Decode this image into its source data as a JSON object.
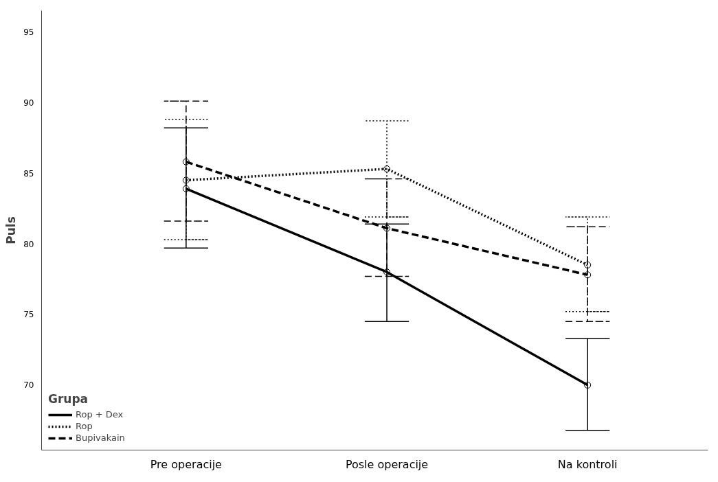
{
  "chart_data": {
    "type": "line",
    "ylabel": "Puls",
    "legend_title": "Grupa",
    "categories": [
      "Pre operacije",
      "Posle operacije",
      "Na kontroli"
    ],
    "ylim": [
      65.4,
      96.5
    ],
    "yticks": [
      70,
      75,
      80,
      85,
      90,
      95
    ],
    "grid": false,
    "legend": "bottom left",
    "marker": "circle",
    "series": [
      {
        "name": "Rop + Dex",
        "color": "#000000",
        "line_style": "solid",
        "values": [
          83.9,
          78.0,
          70.0
        ],
        "errors": [
          [
            79.7,
            88.2
          ],
          [
            74.5,
            81.4
          ],
          [
            66.8,
            73.3
          ]
        ]
      },
      {
        "name": "Rop",
        "color": "#000000",
        "line_style": "dotted",
        "values": [
          84.5,
          85.3,
          78.5
        ],
        "errors": [
          [
            80.3,
            88.8
          ],
          [
            81.9,
            88.7
          ],
          [
            75.2,
            81.9
          ]
        ]
      },
      {
        "name": "Bupivakain",
        "color": "#000000",
        "line_style": "dashed",
        "values": [
          85.8,
          81.1,
          77.8
        ],
        "errors": [
          [
            81.6,
            90.1
          ],
          [
            77.7,
            84.6
          ],
          [
            74.5,
            81.2
          ]
        ]
      }
    ]
  }
}
